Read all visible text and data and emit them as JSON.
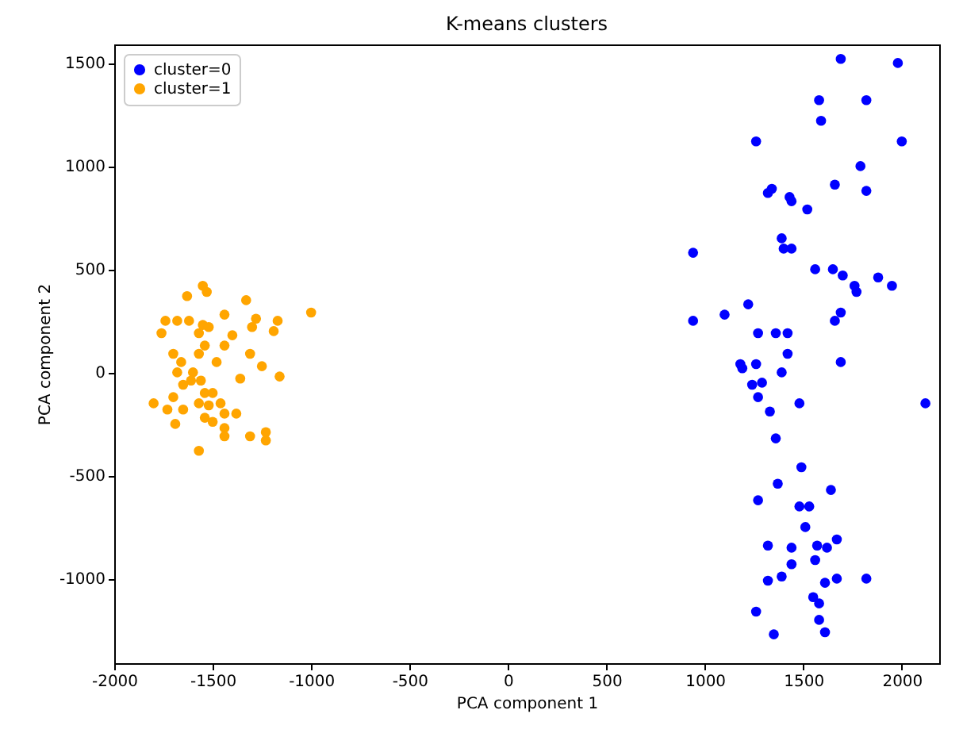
{
  "chart_data": {
    "type": "scatter",
    "title": "K-means clusters",
    "xlabel": "PCA component 1",
    "ylabel": "PCA component 2",
    "xlim": [
      -2000,
      2190
    ],
    "ylim": [
      -1410,
      1590
    ],
    "xticks": [
      -2000,
      -1500,
      -1000,
      -500,
      0,
      500,
      1000,
      1500,
      2000
    ],
    "yticks": [
      -1000,
      -500,
      0,
      500,
      1000,
      1500
    ],
    "grid": false,
    "legend": "top left",
    "marker": "circle",
    "series": [
      {
        "name": "cluster=0",
        "color": "#0000ff",
        "x": [
          1690,
          1980,
          1580,
          1820,
          1590,
          1260,
          2000,
          1790,
          1340,
          1320,
          1660,
          1820,
          1430,
          1440,
          1520,
          940,
          1390,
          1400,
          1440,
          1560,
          1650,
          1700,
          1880,
          1760,
          1770,
          1950,
          1220,
          940,
          1100,
          1690,
          1660,
          1270,
          1360,
          1420,
          1420,
          1180,
          1190,
          1260,
          1390,
          1690,
          1240,
          1290,
          1270,
          1330,
          1480,
          2120,
          1360,
          1490,
          1370,
          1270,
          1640,
          1480,
          1530,
          1510,
          1320,
          1440,
          1570,
          1620,
          1670,
          1560,
          1440,
          1320,
          1390,
          1610,
          1670,
          1820,
          1550,
          1580,
          1260,
          1580,
          1350,
          1610
        ],
        "values": [
          1520,
          1500,
          1320,
          1320,
          1220,
          1120,
          1120,
          1000,
          890,
          870,
          910,
          880,
          850,
          830,
          790,
          580,
          650,
          600,
          600,
          500,
          500,
          470,
          460,
          420,
          390,
          420,
          330,
          250,
          280,
          290,
          250,
          190,
          190,
          190,
          90,
          40,
          20,
          40,
          0,
          50,
          -60,
          -50,
          -120,
          -190,
          -150,
          -150,
          -320,
          -460,
          -540,
          -620,
          -570,
          -650,
          -650,
          -750,
          -840,
          -850,
          -840,
          -850,
          -810,
          -910,
          -930,
          -1010,
          -990,
          -1020,
          -1000,
          -1000,
          -1090,
          -1120,
          -1160,
          -1200,
          -1270,
          -1260
        ]
      },
      {
        "name": "cluster=1",
        "color": "#ffa500",
        "x": [
          -1550,
          -1530,
          -1630,
          -1330,
          -1000,
          -1440,
          -1740,
          -1680,
          -1620,
          -1550,
          -1520,
          -1280,
          -1300,
          -1170,
          -1190,
          -1760,
          -1570,
          -1400,
          -1440,
          -1540,
          -1310,
          -1700,
          -1660,
          -1250,
          -1570,
          -1480,
          -1680,
          -1600,
          -1610,
          -1560,
          -1360,
          -1160,
          -1650,
          -1540,
          -1500,
          -1700,
          -1800,
          -1730,
          -1570,
          -1520,
          -1460,
          -1650,
          -1440,
          -1380,
          -1540,
          -1500,
          -1690,
          -1440,
          -1310,
          -1230,
          -1230,
          -1440,
          -1570
        ],
        "values": [
          420,
          390,
          370,
          350,
          290,
          280,
          250,
          250,
          250,
          230,
          220,
          260,
          220,
          250,
          200,
          190,
          190,
          180,
          130,
          130,
          90,
          90,
          50,
          30,
          90,
          50,
          0,
          0,
          -40,
          -40,
          -30,
          -20,
          -60,
          -100,
          -100,
          -120,
          -150,
          -180,
          -150,
          -160,
          -150,
          -180,
          -200,
          -200,
          -220,
          -240,
          -250,
          -270,
          -310,
          -290,
          -330,
          -310,
          -380
        ]
      }
    ]
  }
}
